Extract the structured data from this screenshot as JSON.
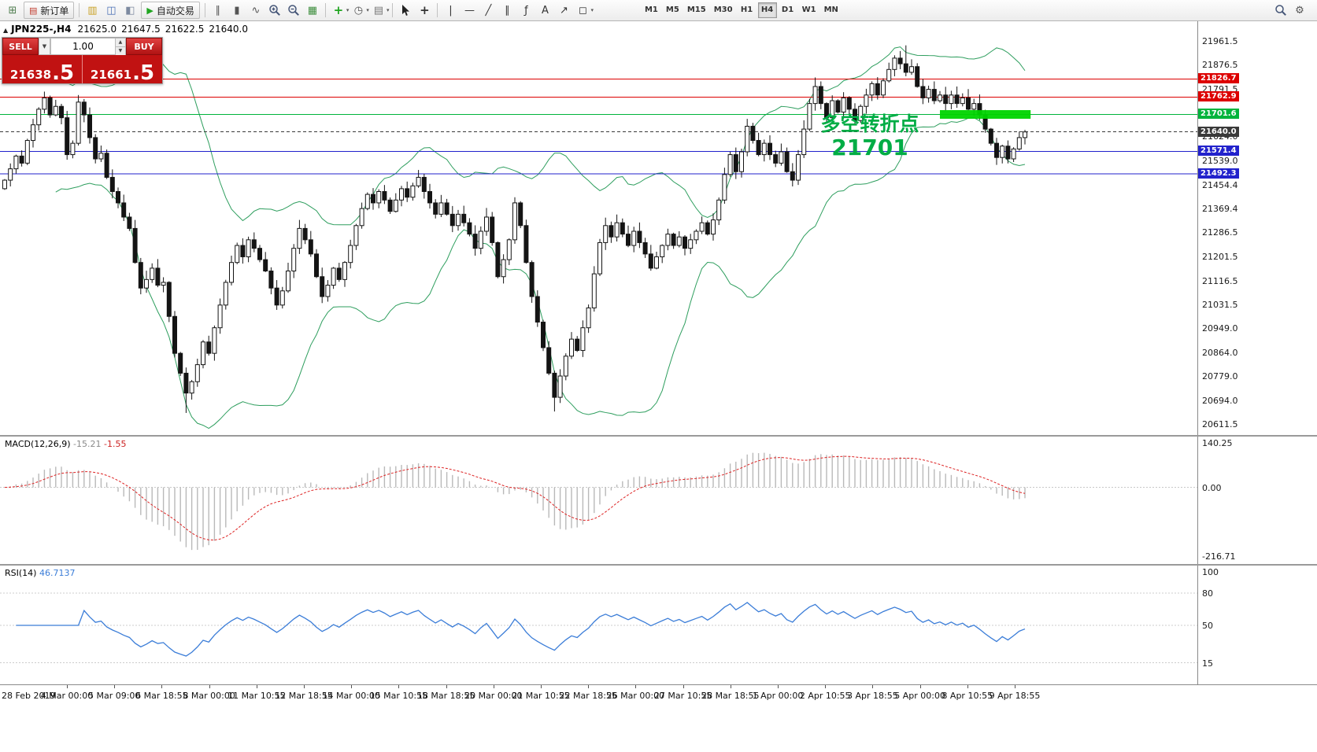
{
  "toolbar": {
    "items": [
      {
        "name": "new-chart",
        "glyph": "⊞",
        "color": "#4f7d4f"
      },
      {
        "name": "new-order",
        "type": "button",
        "label": "新订单",
        "glyph": "▤",
        "color": "#c0392b"
      },
      {
        "type": "sep"
      },
      {
        "name": "profiles",
        "glyph": "▥",
        "color": "#c9a227"
      },
      {
        "name": "market-watch",
        "glyph": "◫",
        "color": "#4a6fb5"
      },
      {
        "name": "data-window",
        "glyph": "◧",
        "color": "#7d8aa0"
      },
      {
        "name": "autotrading",
        "type": "button",
        "label": "自动交易",
        "glyph": "▶",
        "color": "#1fa51f"
      },
      {
        "type": "sep"
      },
      {
        "name": "chart-bars",
        "glyph": "∥",
        "color": "#555555"
      },
      {
        "name": "chart-candles",
        "glyph": "▮",
        "color": "#555555"
      },
      {
        "name": "chart-line",
        "glyph": "∿",
        "color": "#555555"
      },
      {
        "name": "zoom-in",
        "svg": "zoom-in"
      },
      {
        "name": "zoom-out",
        "svg": "zoom-out"
      },
      {
        "name": "auto-arrange",
        "glyph": "▦",
        "color": "#3f8f3f"
      },
      {
        "type": "sep"
      },
      {
        "name": "indicators",
        "glyph": "+",
        "color": "#1fa51f",
        "dropdown": true
      },
      {
        "name": "periods",
        "glyph": "◷",
        "color": "#555555",
        "dropdown": true
      },
      {
        "name": "templates",
        "glyph": "▤",
        "color": "#777777",
        "dropdown": true
      },
      {
        "type": "sep"
      },
      {
        "name": "cursor",
        "svg": "cursor"
      },
      {
        "name": "crosshair",
        "glyph": "+",
        "color": "#333333"
      },
      {
        "type": "sep"
      },
      {
        "name": "vertical-line",
        "glyph": "|",
        "color": "#333333"
      },
      {
        "name": "horizontal-line",
        "glyph": "—",
        "color": "#333333"
      },
      {
        "name": "trendline",
        "glyph": "╱",
        "color": "#333333"
      },
      {
        "name": "equidistant-channel",
        "glyph": "∥",
        "color": "#333333"
      },
      {
        "name": "fibonacci",
        "glyph": "ƒ",
        "color": "#333333"
      },
      {
        "name": "text",
        "glyph": "A",
        "color": "#333333"
      },
      {
        "name": "arrow-tools",
        "glyph": "↗",
        "color": "#333333"
      },
      {
        "name": "shapes",
        "glyph": "◻",
        "color": "#333333",
        "dropdown": true
      }
    ],
    "timeframes": [
      "M1",
      "M5",
      "M15",
      "M30",
      "H1",
      "H4",
      "D1",
      "W1",
      "MN"
    ],
    "active_timeframe": "H4",
    "right_items": [
      {
        "name": "search",
        "svg": "search"
      },
      {
        "name": "settings",
        "glyph": "⚙",
        "color": "#555555"
      }
    ]
  },
  "symbol_bar": {
    "marker": "▲",
    "symbol": "JPN225-,H4",
    "open": "21625.0",
    "high": "21647.5",
    "low": "21622.5",
    "close": "21640.0"
  },
  "trade_panel": {
    "sell_label": "SELL",
    "buy_label": "BUY",
    "volume": "1.00",
    "sell_price_main": "21638",
    "sell_price_frac": ".5",
    "buy_price_main": "21661",
    "buy_price_frac": ".5"
  },
  "annotation": {
    "line1": "多空转折点",
    "line2": "21701",
    "color": "#00ad45"
  },
  "levels": [
    {
      "price": 21826.7,
      "label": "21826.7",
      "color": "#dd0000",
      "style": "solid"
    },
    {
      "price": 21762.9,
      "label": "21762.9",
      "color": "#dd0000",
      "style": "solid"
    },
    {
      "price": 21701.6,
      "label": "21701.6",
      "color": "#00b43c",
      "style": "solid"
    },
    {
      "price": 21640.0,
      "label": "21640.0",
      "color": "#3a3a3a",
      "style": "dashed"
    },
    {
      "price": 21571.4,
      "label": "21571.4",
      "color": "#2222cc",
      "style": "solid"
    },
    {
      "price": 21492.3,
      "label": "21492.3",
      "color": "#2222cc",
      "style": "solid"
    }
  ],
  "price_axis_values": [
    21961.5,
    21876.5,
    21791.5,
    21624.0,
    21539.0,
    21454.4,
    21369.4,
    21286.5,
    21201.5,
    21116.5,
    21031.5,
    20949.0,
    20864.0,
    20779.0,
    20694.0,
    20611.5
  ],
  "macd": {
    "label": "MACD(12,26,9)",
    "value_main": "-15.21",
    "value_signal": "-1.55",
    "axis": [
      "140.25",
      "0.00",
      "-216.71"
    ],
    "axis_values": [
      140.25,
      0,
      -216.71
    ]
  },
  "rsi": {
    "label": "RSI(14)",
    "value": "46.7137",
    "axis": [
      "100",
      "80",
      "50",
      "15"
    ],
    "axis_values": [
      100,
      80,
      50,
      15
    ],
    "levels": [
      80,
      50,
      15
    ]
  },
  "time_axis": [
    "28 Feb 2019",
    "4 Mar 00:00",
    "5 Mar 09:00",
    "6 Mar 18:55",
    "8 Mar 00:00",
    "11 Mar 10:55",
    "12 Mar 18:55",
    "14 Mar 00:00",
    "15 Mar 10:55",
    "18 Mar 18:55",
    "20 Mar 00:00",
    "21 Mar 10:55",
    "22 Mar 18:55",
    "26 Mar 00:00",
    "27 Mar 10:55",
    "28 Mar 18:55",
    "1 Apr 00:00",
    "2 Apr 10:55",
    "3 Apr 18:55",
    "5 Apr 00:00",
    "8 Apr 10:55",
    "9 Apr 18:55"
  ],
  "chart_data": {
    "type": "candlestick",
    "symbol": "JPN225-",
    "timeframe": "H4",
    "title": "JPN225-,H4",
    "current_ohlc": {
      "open": 21625.0,
      "high": 21647.5,
      "low": 21622.5,
      "close": 21640.0
    },
    "y_range": [
      20575,
      22005
    ],
    "bollinger": {
      "period": 20,
      "deviation": 2
    },
    "macd_params": [
      12,
      26,
      9
    ],
    "rsi_period": 14,
    "closes": [
      21470,
      21510,
      21555,
      21530,
      21610,
      21665,
      21720,
      21760,
      21700,
      21730,
      21690,
      21560,
      21600,
      21745,
      21700,
      21620,
      21545,
      21565,
      21480,
      21430,
      21390,
      21340,
      21300,
      21180,
      21090,
      21120,
      21160,
      21100,
      21110,
      20990,
      20860,
      20790,
      20720,
      20760,
      20820,
      20900,
      20860,
      20950,
      21030,
      21110,
      21180,
      21240,
      21200,
      21260,
      21230,
      21190,
      21150,
      21090,
      21030,
      21080,
      21150,
      21230,
      21300,
      21260,
      21210,
      21130,
      21060,
      21100,
      21160,
      21120,
      21180,
      21240,
      21310,
      21370,
      21420,
      21390,
      21430,
      21400,
      21360,
      21400,
      21440,
      21410,
      21450,
      21480,
      21430,
      21390,
      21350,
      21390,
      21350,
      21310,
      21350,
      21320,
      21280,
      21230,
      21290,
      21340,
      21250,
      21130,
      21190,
      21260,
      21390,
      21310,
      21180,
      21060,
      20970,
      20880,
      20790,
      20705,
      20780,
      20850,
      20910,
      20870,
      20950,
      21020,
      21140,
      21250,
      21310,
      21270,
      21320,
      21280,
      21240,
      21290,
      21250,
      21210,
      21160,
      21200,
      21240,
      21280,
      21240,
      21270,
      21230,
      21260,
      21290,
      21320,
      21280,
      21330,
      21400,
      21490,
      21560,
      21500,
      21570,
      21660,
      21610,
      21560,
      21600,
      21560,
      21530,
      21570,
      21500,
      21470,
      21560,
      21650,
      21740,
      21800,
      21740,
      21690,
      21750,
      21710,
      21760,
      21720,
      21680,
      21730,
      21770,
      21810,
      21770,
      21820,
      21860,
      21900,
      21880,
      21850,
      21870,
      21800,
      21760,
      21790,
      21750,
      21770,
      21740,
      21770,
      21740,
      21760,
      21720,
      21740,
      21700,
      21650,
      21600,
      21550,
      21590,
      21545,
      21580,
      21620,
      21640
    ],
    "wick_overrides": {
      "32": {
        "low": 20650
      },
      "97": {
        "low": 20655
      },
      "159": {
        "high": 21945
      }
    },
    "highlight_rect": {
      "price": 21701.6,
      "from_bar": 165,
      "to_bar": 181,
      "color": "#00d400"
    }
  }
}
